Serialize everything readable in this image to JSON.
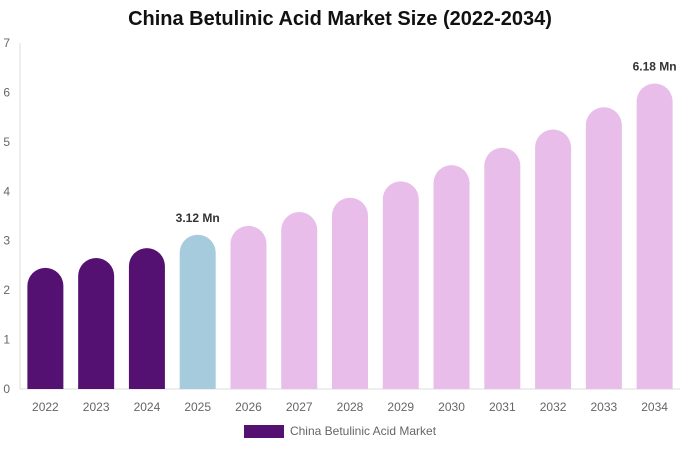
{
  "chart_data": {
    "type": "bar",
    "title": "China Betulinic Acid Market Size (2022-2034)",
    "categories": [
      "2022",
      "2023",
      "2024",
      "2025",
      "2026",
      "2027",
      "2028",
      "2029",
      "2030",
      "2031",
      "2032",
      "2033",
      "2034"
    ],
    "series": [
      {
        "name": "China Betulinic Acid Market",
        "values": [
          2.45,
          2.65,
          2.85,
          3.12,
          3.3,
          3.58,
          3.87,
          4.2,
          4.53,
          4.88,
          5.25,
          5.7,
          6.18
        ],
        "colors": [
          "#541172",
          "#541172",
          "#541172",
          "#a6cbdd",
          "#e8bde9",
          "#e8bde9",
          "#e8bde9",
          "#e8bde9",
          "#e8bde9",
          "#e8bde9",
          "#e8bde9",
          "#e8bde9",
          "#e8bde9"
        ]
      }
    ],
    "data_labels": [
      {
        "index": 3,
        "text": "3.12 Mn"
      },
      {
        "index": 12,
        "text": "6.18 Mn"
      }
    ],
    "yticks": [
      "0",
      "1",
      "2",
      "3",
      "4",
      "5",
      "6",
      "7"
    ],
    "ylim": [
      0,
      7
    ],
    "xlabel": "",
    "ylabel": "",
    "grid": false,
    "legend_position": "bottom",
    "legend_color": "#541172"
  }
}
